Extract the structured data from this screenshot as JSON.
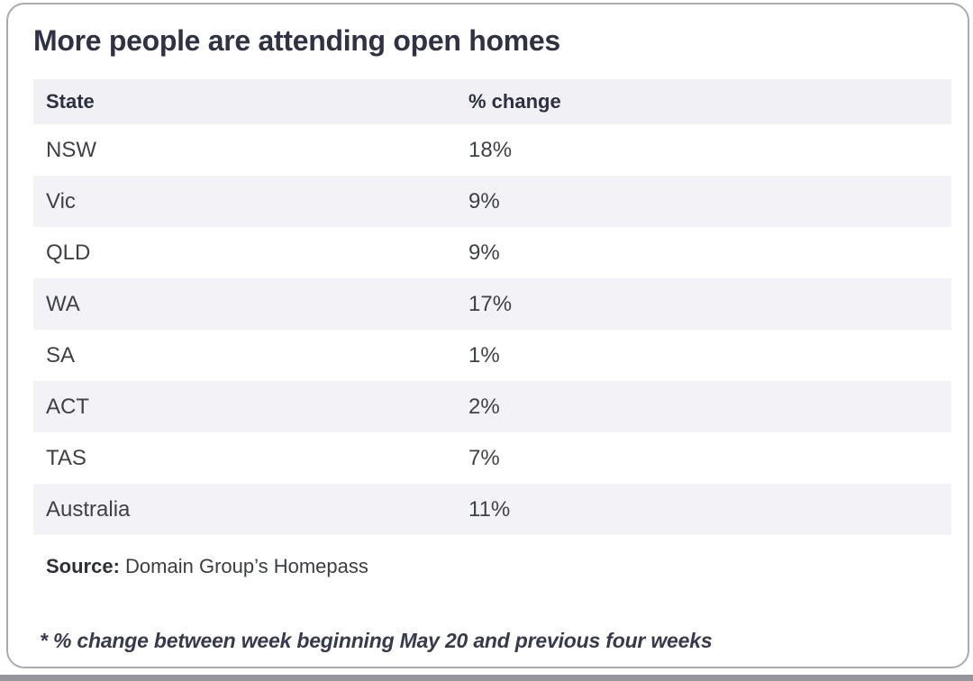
{
  "title": "More people are attending open homes",
  "table": {
    "columns": [
      "State",
      "% change"
    ],
    "rows": [
      {
        "state": "NSW",
        "change": "18%"
      },
      {
        "state": "Vic",
        "change": "9%"
      },
      {
        "state": "QLD",
        "change": "9%"
      },
      {
        "state": "WA",
        "change": "17%"
      },
      {
        "state": "SA",
        "change": "1%"
      },
      {
        "state": "ACT",
        "change": "2%"
      },
      {
        "state": "TAS",
        "change": "7%"
      },
      {
        "state": "Australia",
        "change": "11%"
      }
    ]
  },
  "source": {
    "label": "Source:",
    "text": " Domain Group’s Homepass"
  },
  "footnote": "* % change between week beginning May 20 and previous four weeks",
  "colors": {
    "title_text": "#2f3245",
    "header_bg": "#f0f0f5",
    "alt_row_bg": "#f2f2f7",
    "row_text": "#3e4147",
    "card_border": "#a9abb0",
    "bottom_strip": "#95969b"
  },
  "chart_data": {
    "type": "table",
    "title": "More people are attending open homes",
    "columns": [
      "State",
      "% change"
    ],
    "categories": [
      "NSW",
      "Vic",
      "QLD",
      "WA",
      "SA",
      "ACT",
      "TAS",
      "Australia"
    ],
    "values": [
      18,
      9,
      9,
      17,
      1,
      2,
      7,
      11
    ],
    "value_unit": "%",
    "source": "Domain Group’s Homepass",
    "footnote": "* % change between week beginning May 20 and previous four weeks"
  }
}
